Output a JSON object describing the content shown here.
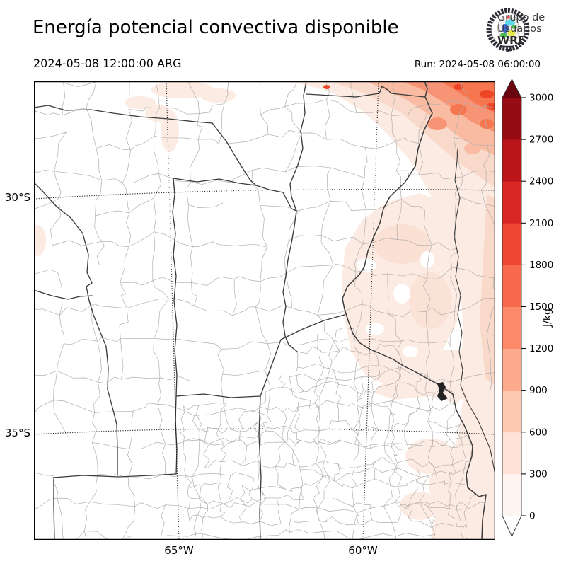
{
  "header": {
    "title": "Energía potencial convectiva disponible",
    "valid_time": "2024-05-08 12:00:00 ARG",
    "run_time": "Run: 2024-05-08 06:00:00"
  },
  "logo": {
    "line1": "Grupo de",
    "line2": "Usuarios",
    "line3": "WRF"
  },
  "map": {
    "axis": {
      "lat_ticks": [
        "30°S",
        "35°S"
      ],
      "lon_ticks": [
        "65°W",
        "60°W"
      ]
    }
  },
  "colorbar": {
    "unit": "J/kg",
    "tick_values": [
      "0",
      "300",
      "600",
      "900",
      "1200",
      "1500",
      "1800",
      "2100",
      "2400",
      "2700",
      "3000"
    ],
    "colors": [
      "#fff5f0",
      "#fee3d6",
      "#fdc9b0",
      "#fcab8f",
      "#fc8a6a",
      "#f9694c",
      "#ef4533",
      "#d92723",
      "#bb151a",
      "#970c13"
    ],
    "over_color": "#6a0510",
    "under_color": "#ffffff",
    "outline_color": "#333333"
  },
  "chart_data": {
    "type": "heatmap",
    "title": "Energía potencial convectiva disponible",
    "variable_unit": "J/kg",
    "valid_time": "2024-05-08 12:00:00 ARG",
    "model_run": "2024-05-08 06:00:00",
    "levels": [
      0,
      300,
      600,
      900,
      1200,
      1500,
      1800,
      2100,
      2400,
      2700,
      3000
    ],
    "colorbar_extend": "both",
    "x_ticks": [
      "65°W",
      "60°W"
    ],
    "y_ticks": [
      "30°S",
      "35°S"
    ],
    "legend_position": "right",
    "grid": "dotted latitude/longitude gridlines at 30°S, 35°S, 65°W, 60°W",
    "summary": "CAPE filled contours over central-eastern Argentina: ~0 J/kg (white) over central and western provinces; 0–300 J/kg pale shading over Entre Ríos, the Río de la Plata and the Buenos Aires coast; values increase toward the northeast corner of the domain reaching ≈1500–1800 J/kg near the top-right (NE) corner."
  }
}
